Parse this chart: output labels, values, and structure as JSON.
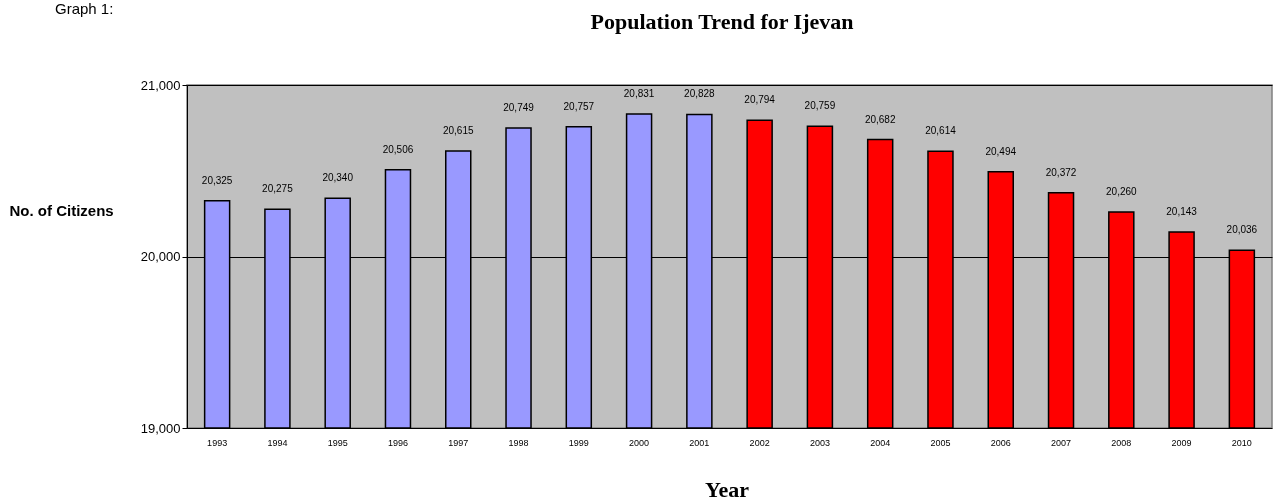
{
  "chart_data": {
    "type": "bar",
    "title": "Population Trend for Ijevan",
    "xlabel": "Year",
    "ylabel": "No. of Citizens",
    "annotations": [
      "Graph 1:"
    ],
    "categories": [
      "1993",
      "1994",
      "1995",
      "1996",
      "1997",
      "1998",
      "1999",
      "2000",
      "2001",
      "2002",
      "2003",
      "2004",
      "2005",
      "2006",
      "2007",
      "2008",
      "2009",
      "2010"
    ],
    "values": [
      20325,
      20275,
      20340,
      20506,
      20615,
      20749,
      20757,
      20831,
      20828,
      20794,
      20759,
      20682,
      20614,
      20494,
      20372,
      20260,
      20143,
      20036
    ],
    "colors": [
      "#9999ff",
      "#9999ff",
      "#9999ff",
      "#9999ff",
      "#9999ff",
      "#9999ff",
      "#9999ff",
      "#9999ff",
      "#9999ff",
      "#ff0000",
      "#ff0000",
      "#ff0000",
      "#ff0000",
      "#ff0000",
      "#ff0000",
      "#ff0000",
      "#ff0000",
      "#ff0000"
    ],
    "value_labels": [
      "20,325",
      "20,275",
      "20,340",
      "20,506",
      "20,615",
      "20,749",
      "20,757",
      "20,831",
      "20,828",
      "20,794",
      "20,759",
      "20,682",
      "20,614",
      "20,494",
      "20,372",
      "20,260",
      "20,143",
      "20,036"
    ],
    "ylim": [
      19000,
      21000
    ],
    "yticks": [
      {
        "value": 19000,
        "label": "19,000"
      },
      {
        "value": 20000,
        "label": "20,000"
      },
      {
        "value": 21000,
        "label": "21,000"
      }
    ],
    "grid": "y"
  }
}
